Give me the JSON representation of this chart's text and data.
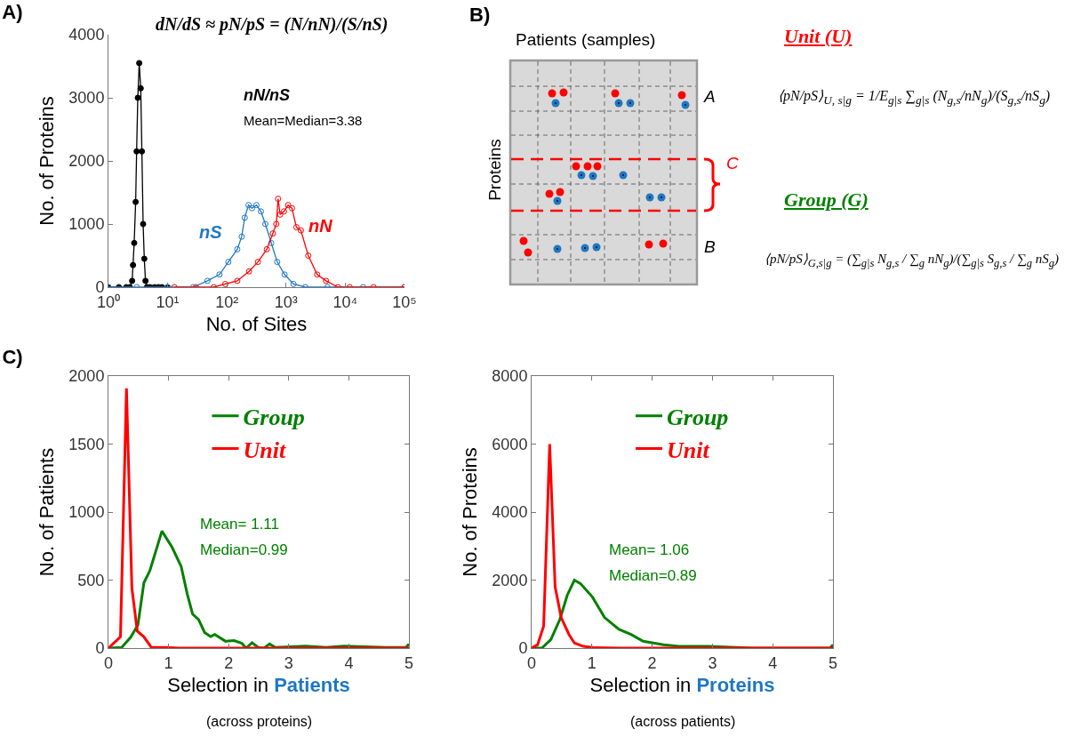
{
  "chart_data": [
    {
      "type": "line",
      "title": "A)",
      "xlabel": "No. of Sites",
      "ylabel": "No. of Proteins",
      "log": "x",
      "marker": "circle",
      "grid": false,
      "legend": false,
      "xlim": [
        1,
        100000
      ],
      "xticks": [
        {
          "value": 1,
          "label": "10⁰"
        },
        {
          "value": 10,
          "label": "10¹"
        },
        {
          "value": 100,
          "label": "10²"
        },
        {
          "value": 1000,
          "label": "10³"
        },
        {
          "value": 10000,
          "label": "10⁴"
        },
        {
          "value": 100000,
          "label": "10⁵"
        }
      ],
      "ylim": [
        0,
        4000
      ],
      "yticks": [
        0,
        1000,
        2000,
        3000,
        4000
      ],
      "annotations": [
        "dN/dS ≈ pN/pS = (N/nN)/(S/nS)",
        "nN/nS",
        "Mean=Median=3.38"
      ],
      "series": [
        {
          "color": "#000000",
          "x": [
            1,
            1.5,
            2,
            2.3,
            2.51,
            2.6,
            2.72,
            2.88,
            2.99,
            3.13,
            3.31,
            3.51,
            3.67,
            3.85,
            4.03,
            4.22,
            4.47,
            5,
            6,
            7,
            8,
            10
          ],
          "values": [
            0,
            0,
            0,
            0,
            100,
            350,
            700,
            1350,
            2150,
            3000,
            3550,
            3150,
            2150,
            1000,
            450,
            100,
            0,
            0,
            0,
            0,
            0,
            0
          ]
        },
        {
          "name": "nS",
          "color": "#1f77c4",
          "x": [
            1,
            3,
            10,
            27,
            47,
            75,
            106,
            150,
            178,
            200,
            232,
            266,
            316,
            376,
            447,
            562,
            708,
            944,
            1334,
            2113,
            5000,
            20000,
            100000
          ],
          "values": [
            0,
            0,
            0,
            0,
            100,
            200,
            400,
            600,
            800,
            1100,
            1300,
            1250,
            1300,
            1200,
            1000,
            700,
            400,
            200,
            50,
            0,
            0,
            0,
            0
          ]
        },
        {
          "name": "nN",
          "color": "#ff0000",
          "x": [
            13,
            30,
            60,
            94,
            150,
            237,
            335,
            473,
            596,
            684,
            733,
            794,
            923,
            1084,
            1259,
            1496,
            1778,
            2371,
            3350,
            4732,
            7500,
            11885,
            30000,
            100000
          ],
          "values": [
            0,
            0,
            0,
            50,
            100,
            250,
            400,
            600,
            850,
            1000,
            1400,
            1150,
            1200,
            1300,
            1250,
            950,
            900,
            500,
            200,
            100,
            0,
            0,
            0,
            0
          ]
        }
      ]
    },
    {
      "type": "other",
      "title": "B)",
      "annotations": [
        "Patients (samples)",
        "Proteins",
        "A",
        "B",
        "C",
        "Unit (U)",
        "⟨pN/pS⟩$_{U, s|g}$ = 1/E$_{g|s}$ ∑$_{g|s}$ (N$_{g,s}$/nN$_{g}$)/(S$_{g,s}$/nS$_{g}$)",
        "Group (G)",
        "⟨pN/pS⟩$_{G,s|g}$ = (∑$_{g|s}$ N$_{g,s}$ / ∑$_{g}$ nN$_{g}$)/(∑$_{g|s}$ S$_{g,s}$ / ∑$_{g}$ nS$_{g}$)"
      ]
    },
    {
      "type": "line",
      "title": "C)",
      "xlabel": "Selection in Patients",
      "ylabel": "No. of Patients",
      "grid": false,
      "legend": "top",
      "marker": "none",
      "xlim": [
        0,
        5
      ],
      "xticks": [
        0,
        1,
        2,
        3,
        4,
        5
      ],
      "ylim": [
        0,
        2000
      ],
      "yticks": [
        0,
        500,
        1000,
        1500,
        2000
      ],
      "annotations": [
        "Mean= 1.11",
        "Median=0.99",
        "(across proteins)"
      ],
      "series": [
        {
          "name": "Group",
          "color": "#008000",
          "x": [
            0,
            0.22,
            0.37,
            0.49,
            0.59,
            0.69,
            0.89,
            1.06,
            1.21,
            1.31,
            1.4,
            1.5,
            1.6,
            1.7,
            1.77,
            1.95,
            2.09,
            2.22,
            2.29,
            2.39,
            2.49,
            2.59,
            2.68,
            2.78,
            3.28,
            3.62,
            3.92,
            4.61,
            4.95,
            5
          ],
          "values": [
            0,
            5,
            80,
            170,
            480,
            570,
            860,
            740,
            600,
            400,
            250,
            210,
            115,
            85,
            100,
            50,
            55,
            35,
            0,
            40,
            5,
            0,
            30,
            5,
            15,
            5,
            15,
            5,
            5,
            30
          ]
        },
        {
          "name": "Unit",
          "color": "#ff0000",
          "x": [
            0,
            0.2,
            0.3,
            0.39,
            0.48,
            0.59,
            0.71,
            0.96,
            1.16,
            2,
            3,
            4,
            5
          ],
          "values": [
            0,
            83,
            1910,
            440,
            125,
            83,
            7,
            5,
            0,
            0,
            0,
            0,
            0
          ]
        }
      ]
    },
    {
      "type": "line",
      "xlabel": "Selection in Proteins",
      "ylabel": "No. of Proteins",
      "grid": false,
      "legend": "top",
      "marker": "none",
      "xlim": [
        0,
        5
      ],
      "xticks": [
        0,
        1,
        2,
        3,
        4,
        5
      ],
      "ylim": [
        0,
        8000
      ],
      "yticks": [
        0,
        2000,
        4000,
        6000,
        8000
      ],
      "annotations": [
        "Mean= 1.06",
        "Median=0.89",
        "(across patients)"
      ],
      "series": [
        {
          "name": "Group",
          "color": "#008000",
          "x": [
            0,
            0.17,
            0.32,
            0.47,
            0.59,
            0.71,
            0.81,
            1.01,
            1.21,
            1.45,
            1.65,
            1.85,
            2.19,
            2.44,
            2.93,
            3.67,
            4.66,
            4.95,
            5
          ],
          "values": [
            0,
            0,
            250,
            850,
            1550,
            2000,
            1900,
            1500,
            900,
            550,
            400,
            200,
            100,
            50,
            50,
            0,
            0,
            0,
            100
          ]
        },
        {
          "name": "Unit",
          "color": "#ff0000",
          "x": [
            0,
            0.1,
            0.2,
            0.3,
            0.39,
            0.49,
            0.62,
            0.71,
            0.86,
            1.06,
            1.45,
            2,
            3,
            4,
            5
          ],
          "values": [
            0,
            100,
            650,
            6000,
            1800,
            900,
            400,
            150,
            50,
            10,
            0,
            0,
            0,
            0,
            0
          ]
        }
      ]
    }
  ]
}
